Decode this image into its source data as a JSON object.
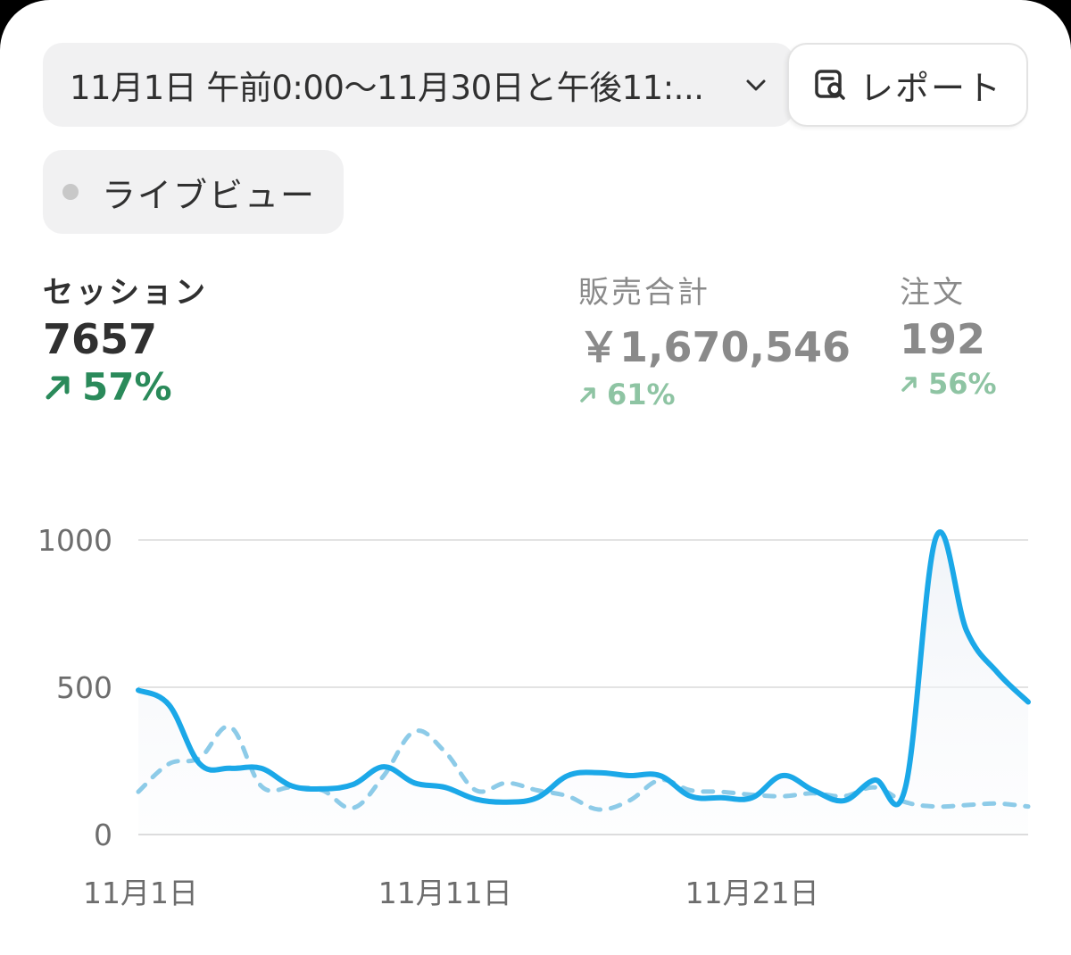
{
  "date_range": {
    "label": "11月1日 午前0:00〜11月30日と午後11:...",
    "icon": "chevron-down-icon"
  },
  "report_button": {
    "label": "レポート",
    "icon": "report-search-icon"
  },
  "live_view": {
    "label": "ライブビュー",
    "status_color": "#c8c8c8"
  },
  "metrics": [
    {
      "label": "セッション",
      "value": "7657",
      "change": "57%",
      "direction": "up",
      "active": true
    },
    {
      "label": "販売合計",
      "value": "￥1,670,546",
      "change": "61%",
      "direction": "up",
      "active": false
    },
    {
      "label": "注文",
      "value": "192",
      "change": "56%",
      "direction": "up",
      "active": false
    }
  ],
  "colors": {
    "primary_line": "#1ba8e8",
    "comparison_line": "#8dcbe8",
    "positive": "#2a8a5a",
    "positive_muted": "#8ec4a3"
  },
  "chart_data": {
    "type": "line",
    "x": [
      "11月1日",
      "11月2日",
      "11月3日",
      "11月4日",
      "11月5日",
      "11月6日",
      "11月7日",
      "11月8日",
      "11月9日",
      "11月10日",
      "11月11日",
      "11月12日",
      "11月13日",
      "11月14日",
      "11月15日",
      "11月16日",
      "11月17日",
      "11月18日",
      "11月19日",
      "11月20日",
      "11月21日",
      "11月22日",
      "11月23日",
      "11月24日",
      "11月25日",
      "11月26日",
      "11月27日",
      "11月28日",
      "11月29日",
      "11月30日"
    ],
    "x_tick_labels": [
      "11月1日",
      "11月11日",
      "11月21日"
    ],
    "y_ticks": [
      0,
      500,
      1000
    ],
    "ylim": [
      0,
      1000
    ],
    "series": [
      {
        "style": "solid",
        "values": [
          490,
          440,
          240,
          225,
          225,
          165,
          155,
          170,
          230,
          175,
          160,
          120,
          110,
          125,
          200,
          210,
          200,
          200,
          130,
          125,
          125,
          200,
          150,
          115,
          185,
          160,
          1010,
          690,
          550,
          450
        ]
      },
      {
        "style": "dashed",
        "values": [
          145,
          240,
          260,
          365,
          165,
          160,
          150,
          90,
          200,
          350,
          280,
          150,
          175,
          150,
          130,
          85,
          115,
          185,
          150,
          145,
          135,
          130,
          140,
          130,
          160,
          110,
          95,
          100,
          105,
          95
        ]
      }
    ],
    "grid": true
  }
}
